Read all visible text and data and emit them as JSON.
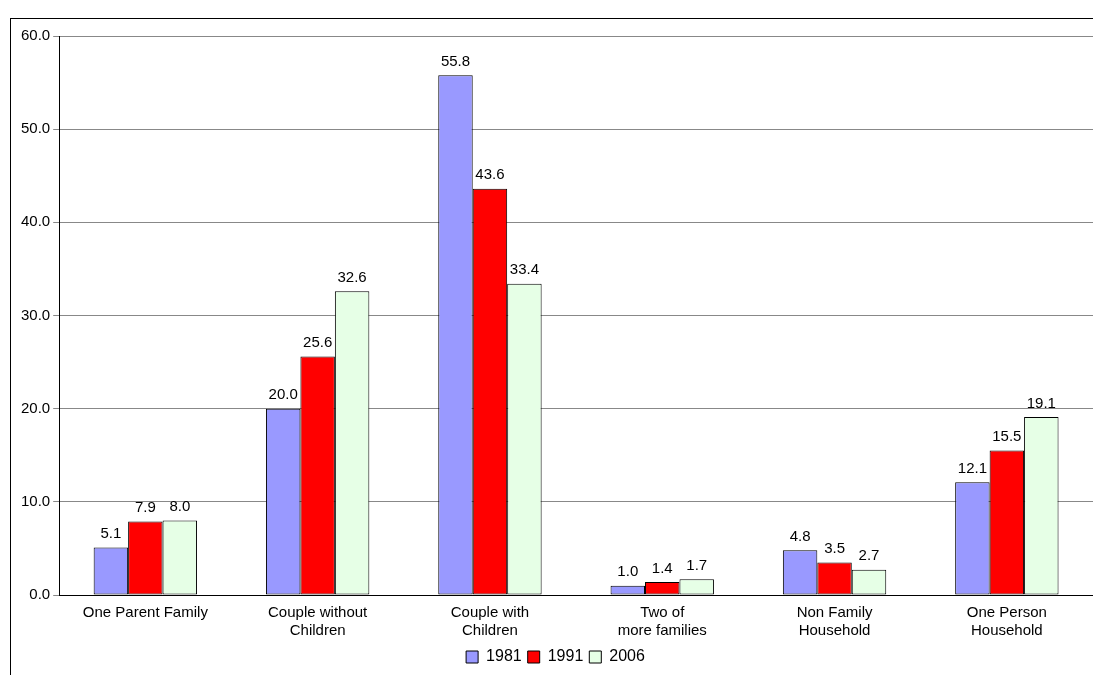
{
  "chart_data": {
    "type": "bar",
    "categories": [
      "One Parent Family",
      "Couple without Children",
      "Couple with Children",
      "Two of more families",
      "Non Family Household",
      "One Person Household"
    ],
    "series": [
      {
        "name": "1981",
        "color": "#9999ff",
        "values": [
          5.1,
          20.0,
          55.8,
          1.0,
          4.8,
          12.1
        ],
        "value_labels": [
          "5.1",
          "20.0",
          "55.8",
          "1.0",
          "4.8",
          "12.1"
        ]
      },
      {
        "name": "1991",
        "color": "#ff0000",
        "values": [
          7.9,
          25.6,
          43.6,
          1.4,
          3.5,
          15.5
        ],
        "value_labels": [
          "7.9",
          "25.6",
          "43.6",
          "1.4",
          "3.5",
          "15.5"
        ]
      },
      {
        "name": "2006",
        "color": "#e6ffe6",
        "values": [
          8.0,
          32.6,
          33.4,
          1.7,
          2.7,
          19.1
        ],
        "value_labels": [
          "8.0",
          "32.6",
          "33.4",
          "1.7",
          "2.7",
          "19.1"
        ]
      }
    ],
    "ylim": [
      0,
      60
    ],
    "yticks": [
      {
        "value": 0,
        "label": "0.0"
      },
      {
        "value": 10,
        "label": "10.0"
      },
      {
        "value": 20,
        "label": "20.0"
      },
      {
        "value": 30,
        "label": "30.0"
      },
      {
        "value": 40,
        "label": "40.0"
      },
      {
        "value": 50,
        "label": "50.0"
      },
      {
        "value": 60,
        "label": "60.0"
      }
    ],
    "grid": "y",
    "legend": "bottom"
  }
}
